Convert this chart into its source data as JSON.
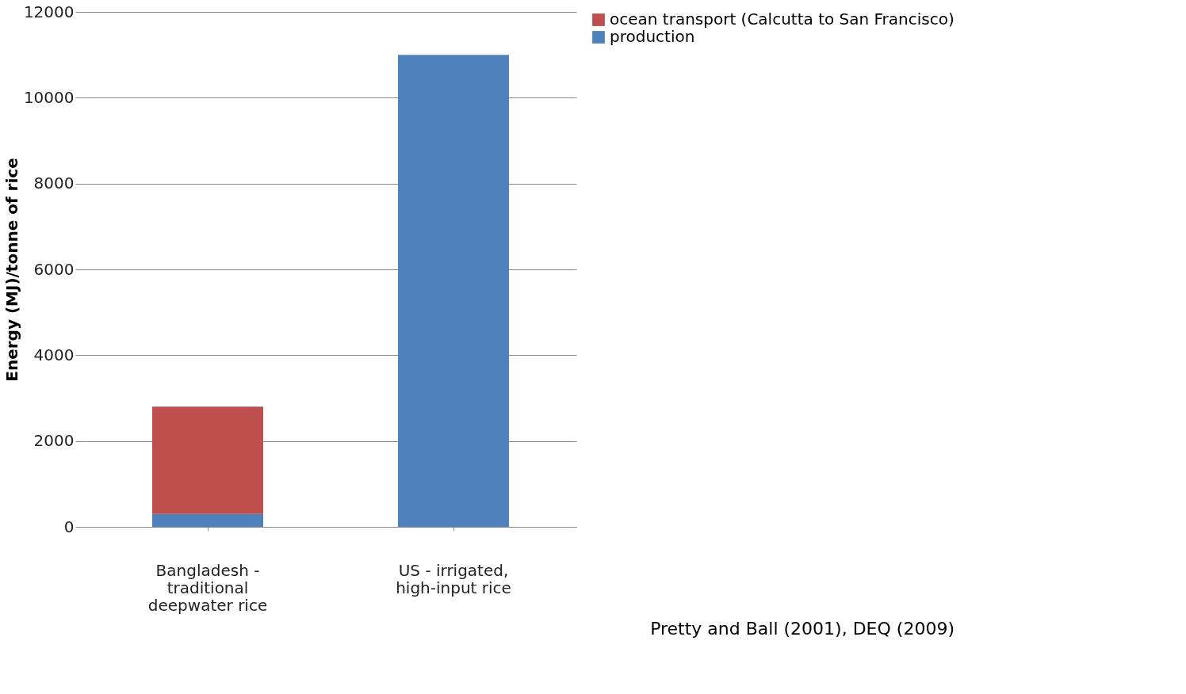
{
  "chart_data": {
    "type": "bar",
    "stacked": true,
    "ylabel": "Energy (MJ)/tonne of rice",
    "categories": [
      "Bangladesh - traditional deepwater rice",
      "US - irrigated, high-input rice"
    ],
    "series": [
      {
        "name": "production",
        "color": "#4f81bd",
        "values": [
          300,
          11000
        ]
      },
      {
        "name": "ocean transport (Calcutta to San Francisco)",
        "color": "#c0504d",
        "values": [
          2500,
          null
        ]
      }
    ],
    "ylim": [
      0,
      12000
    ],
    "yticks": [
      0,
      2000,
      4000,
      6000,
      8000,
      10000,
      12000
    ],
    "grid": "y",
    "legend": "right",
    "annotations": [
      "Pretty and Ball (2001), DEQ (2009)"
    ]
  }
}
